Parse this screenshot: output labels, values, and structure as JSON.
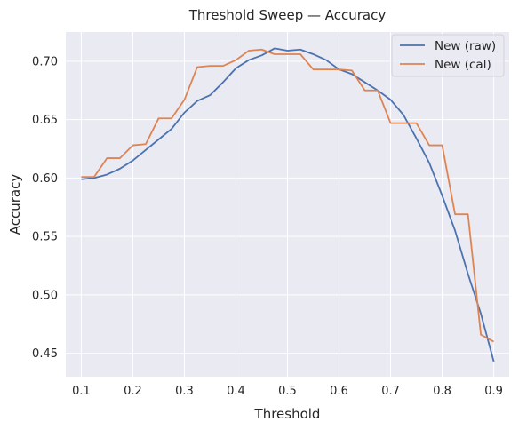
{
  "chart_data": {
    "type": "line",
    "title": "Threshold Sweep — Accuracy",
    "xlabel": "Threshold",
    "ylabel": "Accuracy",
    "xlim": [
      0.07,
      0.93
    ],
    "ylim": [
      0.43,
      0.725
    ],
    "xticks": [
      0.1,
      0.2,
      0.3,
      0.4,
      0.5,
      0.6,
      0.7,
      0.8,
      0.9
    ],
    "xtick_labels": [
      "0.1",
      "0.2",
      "0.3",
      "0.4",
      "0.5",
      "0.6",
      "0.7",
      "0.8",
      "0.9"
    ],
    "yticks": [
      0.45,
      0.5,
      0.55,
      0.6,
      0.65,
      0.7
    ],
    "ytick_labels": [
      "0.45",
      "0.50",
      "0.55",
      "0.60",
      "0.65",
      "0.70"
    ],
    "grid": true,
    "legend_position": "upper right",
    "x": [
      0.1,
      0.125,
      0.15,
      0.175,
      0.2,
      0.225,
      0.25,
      0.275,
      0.3,
      0.325,
      0.35,
      0.375,
      0.4,
      0.425,
      0.45,
      0.475,
      0.5,
      0.525,
      0.55,
      0.575,
      0.6,
      0.625,
      0.65,
      0.675,
      0.7,
      0.725,
      0.75,
      0.775,
      0.8,
      0.825,
      0.85,
      0.875,
      0.9
    ],
    "series": [
      {
        "name": "New (raw)",
        "color": "#4c72b0",
        "values": [
          0.599,
          0.6,
          0.603,
          0.608,
          0.615,
          0.624,
          0.633,
          0.642,
          0.656,
          0.666,
          0.671,
          0.682,
          0.694,
          0.701,
          0.705,
          0.711,
          0.709,
          0.71,
          0.706,
          0.701,
          0.693,
          0.689,
          0.682,
          0.675,
          0.667,
          0.654,
          0.634,
          0.613,
          0.585,
          0.555,
          0.518,
          0.484,
          0.443
        ]
      },
      {
        "name": "New (cal)",
        "color": "#dd8452",
        "values": [
          0.601,
          0.601,
          0.617,
          0.617,
          0.628,
          0.629,
          0.651,
          0.651,
          0.667,
          0.695,
          0.696,
          0.696,
          0.701,
          0.709,
          0.71,
          0.706,
          0.706,
          0.706,
          0.693,
          0.693,
          0.693,
          0.692,
          0.675,
          0.675,
          0.647,
          0.647,
          0.647,
          0.628,
          0.628,
          0.569,
          0.569,
          0.466,
          0.46
        ]
      }
    ]
  }
}
